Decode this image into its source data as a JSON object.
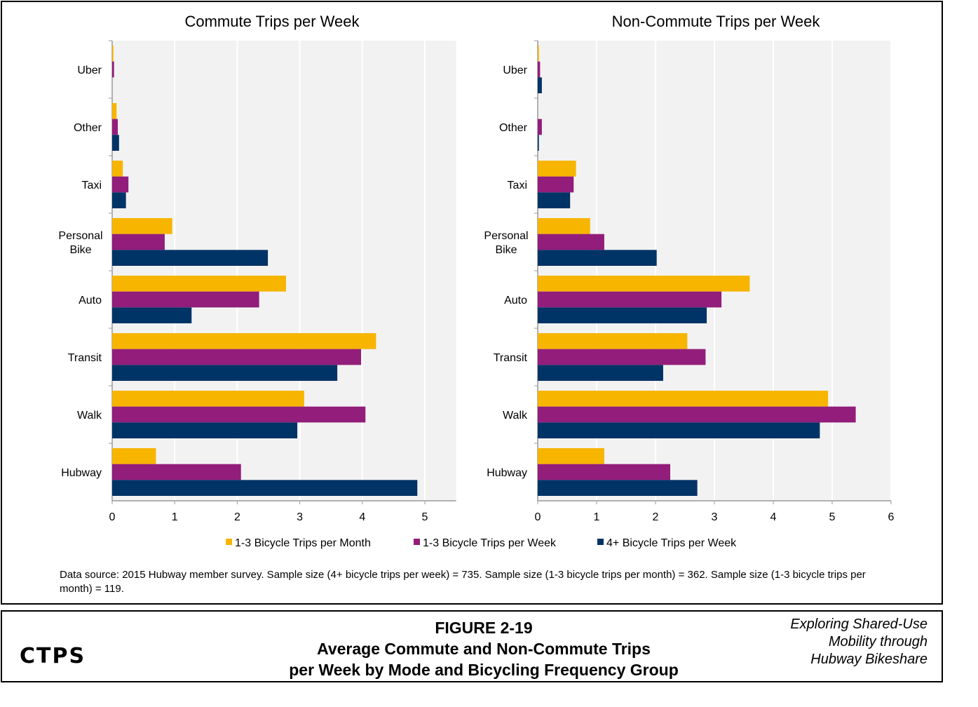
{
  "chart_data": [
    {
      "type": "bar",
      "orientation": "horizontal",
      "title": "Commute Trips per Week",
      "categories": [
        "Uber",
        "Other",
        "Taxi",
        "Personal Bike",
        "Auto",
        "Transit",
        "Walk",
        "Hubway"
      ],
      "xlim": [
        0,
        5.5
      ],
      "xticks": [
        0,
        1,
        2,
        3,
        4,
        5
      ],
      "grid": true,
      "series": [
        {
          "name": "1-3 Bicycle Trips per Month",
          "color": "#F7B500",
          "values": [
            0.02,
            0.07,
            0.17,
            0.96,
            2.78,
            4.22,
            3.07,
            0.7
          ]
        },
        {
          "name": "1-3 Bicycle Trips per Week",
          "color": "#921D7A",
          "values": [
            0.03,
            0.09,
            0.26,
            0.84,
            2.35,
            3.98,
            4.05,
            2.06
          ]
        },
        {
          "name": "4+ Bicycle Trips per Week",
          "color": "#003366",
          "values": [
            0,
            0.11,
            0.22,
            2.49,
            1.27,
            3.6,
            2.96,
            4.88
          ]
        }
      ]
    },
    {
      "type": "bar",
      "orientation": "horizontal",
      "title": "Non-Commute Trips per Week",
      "categories": [
        "Uber",
        "Other",
        "Taxi",
        "Personal Bike",
        "Auto",
        "Transit",
        "Walk",
        "Hubway"
      ],
      "xlim": [
        0,
        6
      ],
      "xticks": [
        0,
        1,
        2,
        3,
        4,
        5,
        6
      ],
      "grid": true,
      "series": [
        {
          "name": "1-3 Bicycle Trips per Month",
          "color": "#F7B500",
          "values": [
            0.02,
            0,
            0.65,
            0.89,
            3.6,
            2.54,
            4.93,
            1.13
          ]
        },
        {
          "name": "1-3 Bicycle Trips per Week",
          "color": "#921D7A",
          "values": [
            0.04,
            0.07,
            0.61,
            1.13,
            3.12,
            2.85,
            5.4,
            2.25
          ]
        },
        {
          "name": "4+ Bicycle Trips per Week",
          "color": "#003366",
          "values": [
            0.07,
            0.02,
            0.55,
            2.02,
            2.87,
            2.13,
            4.79,
            2.71
          ]
        }
      ]
    }
  ],
  "legend": [
    "1-3 Bicycle Trips per Month",
    "1-3 Bicycle Trips per Week",
    "4+ Bicycle Trips per Week"
  ],
  "source": "Data source: 2015 Hubway member survey. Sample size  (4+ bicycle trips per week) = 735. Sample  size (1-3 bicycle trips per month) = 362. Sample size (1-3 bicycle trips per month) = 119.",
  "figure": {
    "number": "FIGURE 2-19",
    "line1": "Average Commute  and Non-Commute  Trips",
    "line2": "per Week by Mode and Bicycling Frequency Group"
  },
  "logo": "CTPS",
  "report": [
    "Exploring Shared-Use",
    "Mobility through",
    "Hubway Bikeshare"
  ]
}
